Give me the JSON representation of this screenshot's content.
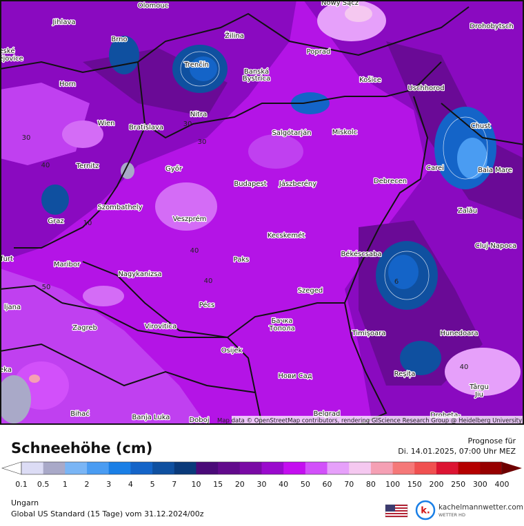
{
  "map": {
    "cities": [
      "Olomouc",
      "Nowy Sącz",
      "Jihlava",
      "Brno",
      "Žilina",
      "Drohobytsch",
      "eské",
      "ějovice",
      "Poprad",
      "Trenčín",
      "Banská",
      "Bystrica",
      "Horn",
      "Košice",
      "Uschhorod",
      "Nitra",
      "Wien",
      "Bratislava",
      "Chust",
      "Salgótarján",
      "Miskolc",
      "Ternitz",
      "Győr",
      "Carei",
      "Baia Mare",
      "Budapest",
      "Jászberény",
      "Debrecen",
      "Zalău",
      "Szombathely",
      "Graz",
      "Veszprém",
      "Cluj-Napoca",
      "Kecskemét",
      "Békéscsaba",
      "Paks",
      "Maribor",
      "furt",
      "Nagykanizsa",
      "Szeged",
      "Pécs",
      "ljana",
      "Бачка",
      "Топола",
      "Zagreb",
      "Virovitica",
      "Timișoara",
      "Hunedoara",
      "Osijek",
      "Reșița",
      "eka",
      "Нови Сад",
      "Târgu",
      "Jiu",
      "Bihać",
      "Banja Luka",
      "Doboj",
      "Belgrad",
      "Drobeta-"
    ],
    "contour_labels": [
      "30",
      "30",
      "30",
      "40",
      "40",
      "40",
      "50",
      "40",
      "10",
      "6"
    ],
    "attribution": "Map data © OpenStreetMap contributors, rendering GIScience Research Group @ Heidelberg University"
  },
  "legend": {
    "title": "Schneehöhe (cm)",
    "forecast_label": "Prognose für",
    "forecast_time": "Di. 14.01.2025, 07:00 Uhr MEZ",
    "ticks": [
      0.1,
      0.5,
      1,
      2,
      3,
      4,
      5,
      7,
      10,
      15,
      20,
      30,
      40,
      50,
      60,
      70,
      80,
      100,
      150,
      200,
      250,
      300,
      400
    ],
    "colors": [
      "#dcdcf5",
      "#a9a9c8",
      "#7ab5f5",
      "#4a9cf2",
      "#1a7fe6",
      "#1464c8",
      "#0f50a0",
      "#0a3a7a",
      "#4a0a78",
      "#620a8c",
      "#7a0aa5",
      "#9a0acd",
      "#c40ef0",
      "#d250fa",
      "#e6a0fa",
      "#f5c8f0",
      "#f5a0b4",
      "#f57878",
      "#f05050",
      "#dc1432",
      "#b40000",
      "#960000"
    ],
    "under_color": "#ffffff",
    "over_color": "#6e0000"
  },
  "footer": {
    "region": "Ungarn",
    "model": "Global US Standard (15 Tage)  vom  31.12.2024/00z",
    "brand": "kachelmannwetter.com",
    "brand_sub": "WETTER HD",
    "logo_letter": "k."
  }
}
